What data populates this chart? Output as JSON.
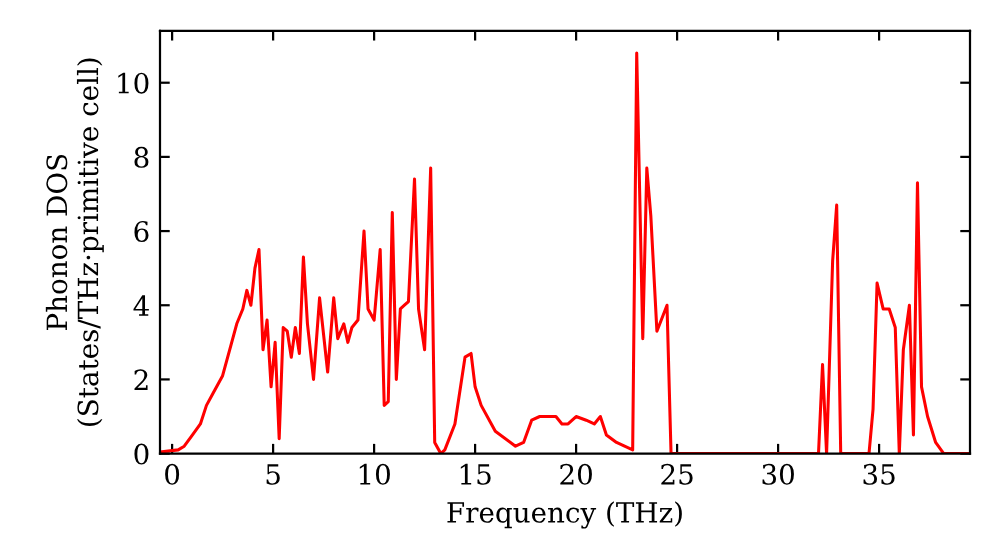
{
  "chart_data": {
    "type": "line",
    "xlabel": "Frequency (THz)",
    "ylabel": "Phonon DOS\n(States/THz·primitive cell)",
    "xlim": [
      -0.6,
      39.5
    ],
    "ylim": [
      0,
      11.4
    ],
    "xticks": [
      0,
      5,
      10,
      15,
      20,
      25,
      30,
      35
    ],
    "yticks": [
      0,
      2,
      4,
      6,
      8,
      10
    ],
    "grid": false,
    "marker": "none",
    "line_style": "solid",
    "series": [
      {
        "color": "#ff0000",
        "x": [
          -0.5,
          0.3,
          0.6,
          1.0,
          1.4,
          1.7,
          2.0,
          2.5,
          2.9,
          3.2,
          3.5,
          3.7,
          3.9,
          4.1,
          4.3,
          4.5,
          4.7,
          4.9,
          5.1,
          5.3,
          5.5,
          5.7,
          5.9,
          6.1,
          6.3,
          6.5,
          6.7,
          7.0,
          7.3,
          7.7,
          8.0,
          8.2,
          8.5,
          8.7,
          8.9,
          9.2,
          9.5,
          9.7,
          10.0,
          10.3,
          10.5,
          10.7,
          10.9,
          11.1,
          11.3,
          11.5,
          11.7,
          12.0,
          12.2,
          12.5,
          12.8,
          13.0,
          13.3,
          13.5,
          14.0,
          14.5,
          14.8,
          15.0,
          15.3,
          16.0,
          17.0,
          17.4,
          17.8,
          18.2,
          19.0,
          19.3,
          19.6,
          20.0,
          20.5,
          20.9,
          21.2,
          21.5,
          22.0,
          22.8,
          23.0,
          23.3,
          23.5,
          23.7,
          24.0,
          24.5,
          24.7,
          32.0,
          32.2,
          32.4,
          32.7,
          32.9,
          33.1,
          34.5,
          34.7,
          34.9,
          35.2,
          35.5,
          35.8,
          36.0,
          36.2,
          36.5,
          36.7,
          36.9,
          37.1,
          37.4,
          37.8,
          38.2,
          39.5
        ],
        "values": [
          0.05,
          0.1,
          0.2,
          0.5,
          0.8,
          1.3,
          1.6,
          2.1,
          2.9,
          3.5,
          3.9,
          4.4,
          4.0,
          5.0,
          5.5,
          2.8,
          3.6,
          1.8,
          3.0,
          0.4,
          3.4,
          3.3,
          2.6,
          3.4,
          2.7,
          5.3,
          3.5,
          2.0,
          4.2,
          2.2,
          4.2,
          3.1,
          3.5,
          3.0,
          3.4,
          3.6,
          6.0,
          3.9,
          3.6,
          5.5,
          1.3,
          1.4,
          6.5,
          2.0,
          3.9,
          4.0,
          4.1,
          7.4,
          3.9,
          2.8,
          7.7,
          0.3,
          0.0,
          0.1,
          0.8,
          2.6,
          2.7,
          1.8,
          1.3,
          0.6,
          0.2,
          0.3,
          0.9,
          1.0,
          1.0,
          0.8,
          0.8,
          1.0,
          0.9,
          0.8,
          1.0,
          0.5,
          0.3,
          0.1,
          10.8,
          3.1,
          7.7,
          6.4,
          3.3,
          4.0,
          0.0,
          0.0,
          2.4,
          0.0,
          5.2,
          6.7,
          0.0,
          0.0,
          1.2,
          4.6,
          3.9,
          3.9,
          3.4,
          0.0,
          2.8,
          4.0,
          0.5,
          7.3,
          1.8,
          1.0,
          0.3,
          0.0,
          0.0
        ]
      }
    ]
  }
}
